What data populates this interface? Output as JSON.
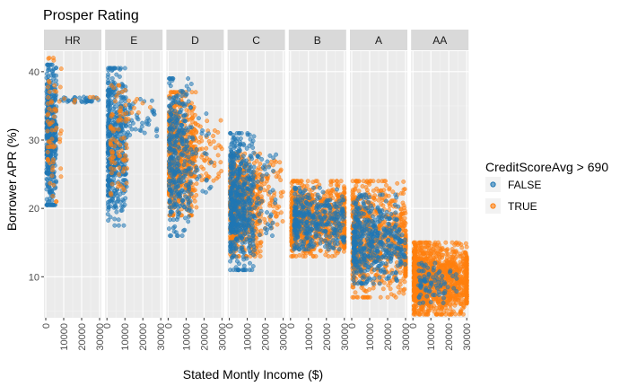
{
  "chart_data": {
    "type": "scatter",
    "title": "Prosper Rating",
    "xlabel": "Stated Montly Income ($)",
    "ylabel": "Borrower APR (%)",
    "xlim": [
      0,
      30000
    ],
    "ylim": [
      4,
      43
    ],
    "x_ticks": [
      0,
      10000,
      20000,
      30000
    ],
    "x_tick_labels": [
      "0",
      "10000",
      "20000",
      "30000"
    ],
    "y_ticks": [
      10,
      20,
      30,
      40
    ],
    "y_tick_labels": [
      "10",
      "20",
      "30",
      "40"
    ],
    "grid": true,
    "legend": {
      "title": "CreditScoreAvg > 690",
      "placement": "right",
      "entries": [
        {
          "label": "FALSE",
          "color": "#1f77b4"
        },
        {
          "label": "TRUE",
          "color": "#ff7f0e"
        }
      ]
    },
    "facets": [
      {
        "label": "HR",
        "clusters": [
          {
            "series": "FALSE",
            "n": 420,
            "x": [
              500,
              6000
            ],
            "y": [
              20.5,
              41
            ],
            "tail_x": 30000,
            "tail_y": [
              35.5,
              36.3
            ]
          },
          {
            "series": "TRUE",
            "n": 70,
            "x": [
              1000,
              9000
            ],
            "y": [
              21,
              42
            ],
            "tail_x": 30000,
            "tail_y": [
              35.5,
              36.3
            ]
          }
        ]
      },
      {
        "label": "E",
        "clusters": [
          {
            "series": "FALSE",
            "n": 520,
            "x": [
              500,
              11000
            ],
            "y": [
              17.5,
              40.5
            ],
            "tail_x": 28000,
            "tail_y": [
              30,
              36
            ]
          },
          {
            "series": "TRUE",
            "n": 90,
            "x": [
              2000,
              12000
            ],
            "y": [
              22,
              38
            ],
            "tail_x": 30000,
            "tail_y": [
              34,
              36
            ]
          }
        ]
      },
      {
        "label": "D",
        "clusters": [
          {
            "series": "TRUE",
            "n": 650,
            "x": [
              500,
              16000
            ],
            "y": [
              19,
              37
            ],
            "tail_x": 30000,
            "tail_y": [
              24,
              33
            ]
          },
          {
            "series": "FALSE",
            "n": 350,
            "x": [
              500,
              13000
            ],
            "y": [
              16,
              39
            ],
            "tail_x": 25000,
            "tail_y": [
              22,
              34
            ]
          }
        ]
      },
      {
        "label": "C",
        "clusters": [
          {
            "series": "TRUE",
            "n": 700,
            "x": [
              500,
              18000
            ],
            "y": [
              13,
              28
            ],
            "tail_x": 30000,
            "tail_y": [
              17,
              27
            ]
          },
          {
            "series": "FALSE",
            "n": 550,
            "x": [
              500,
              14000
            ],
            "y": [
              11,
              31
            ],
            "tail_x": 26000,
            "tail_y": [
              16,
              28
            ]
          }
        ]
      },
      {
        "label": "B",
        "clusters": [
          {
            "series": "TRUE",
            "n": 800,
            "x": [
              500,
              30000
            ],
            "y": [
              13,
              24
            ],
            "tail_x": 30000,
            "tail_y": [
              14,
              23
            ]
          },
          {
            "series": "FALSE",
            "n": 350,
            "x": [
              2000,
              28000
            ],
            "y": [
              14,
              23
            ],
            "tail_x": 30000,
            "tail_y": [
              15,
              22
            ]
          }
        ]
      },
      {
        "label": "A",
        "clusters": [
          {
            "series": "TRUE",
            "n": 800,
            "x": [
              500,
              30000
            ],
            "y": [
              7,
              24
            ],
            "tail_x": 30000,
            "tail_y": [
              10,
              17
            ]
          },
          {
            "series": "FALSE",
            "n": 450,
            "x": [
              1000,
              26000
            ],
            "y": [
              9,
              22
            ],
            "tail_x": 30000,
            "tail_y": [
              11,
              17
            ]
          }
        ]
      },
      {
        "label": "AA",
        "clusters": [
          {
            "series": "TRUE",
            "n": 1300,
            "x": [
              500,
              30000
            ],
            "y": [
              4.5,
              15
            ],
            "tail_x": 30000,
            "tail_y": [
              6,
              13
            ]
          },
          {
            "series": "FALSE",
            "n": 80,
            "x": [
              3000,
              20000
            ],
            "y": [
              6,
              12
            ],
            "tail_x": 25000,
            "tail_y": [
              7,
              11
            ]
          }
        ]
      }
    ]
  },
  "colors": {
    "panel_bg": "#ebebeb",
    "strip_bg": "#d9d9d9",
    "grid_major": "#ffffff",
    "grid_minor": "#f4f4f4",
    "FALSE": "#1f77b4",
    "TRUE": "#ff7f0e"
  }
}
